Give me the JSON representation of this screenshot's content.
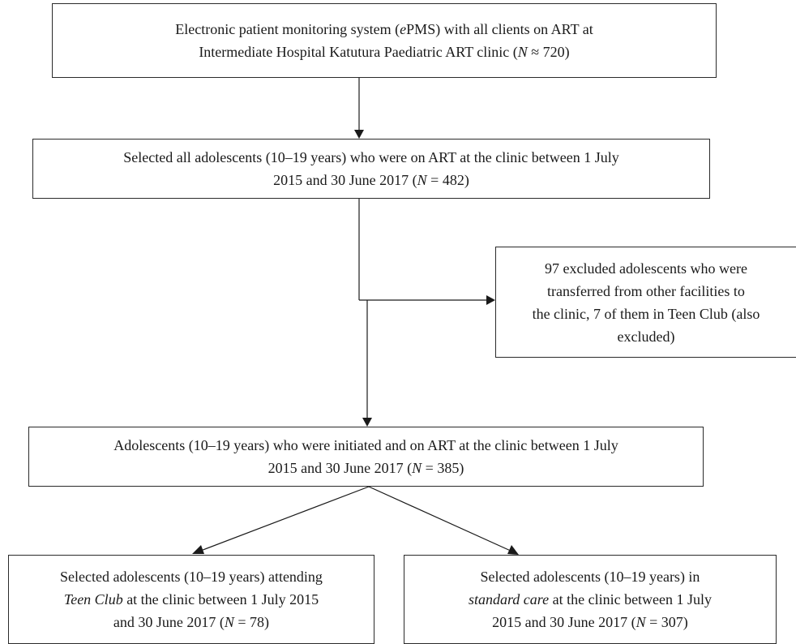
{
  "nodes": {
    "epms": {
      "line1": "Electronic patient monitoring system (",
      "line1_italic": "e",
      "line1_rest": "PMS) with all clients on ART at",
      "line2": "Intermediate Hospital Katutura Paediatric ART clinic (",
      "line2_n": "N",
      "line2_rest": " ≈ 720)"
    },
    "selected_all": {
      "line1": "Selected all adolescents (10–19 years) who were on ART at the clinic between 1 July",
      "line2": "2015 and 30 June 2017 (",
      "line2_n": "N",
      "line2_rest": " = 482)"
    },
    "excluded": {
      "line1": "97 excluded adolescents who were",
      "line2": "transferred from other facilities to",
      "line3": "the clinic, 7 of them in Teen Club (also",
      "line4": "excluded)"
    },
    "initiated": {
      "line1": "Adolescents (10–19 years) who were initiated and on ART at the clinic between 1 July",
      "line2": "2015 and 30 June 2017 (",
      "line2_n": "N",
      "line2_rest": " = 385)"
    },
    "teen_club": {
      "line1": "Selected adolescents (10–19 years) attending",
      "line2_italic": "Teen Club",
      "line2_rest": " at the clinic between 1 July 2015",
      "line3": "and 30 June 2017 (",
      "line3_n": "N",
      "line3_rest": " = 78)"
    },
    "standard_care": {
      "line1": "Selected adolescents (10–19 years) in",
      "line2_italic": "standard care",
      "line2_rest": " at the clinic between 1 July",
      "line3": "2015 and 30 June 2017 (",
      "line3_n": "N",
      "line3_rest": " = 307)"
    }
  }
}
